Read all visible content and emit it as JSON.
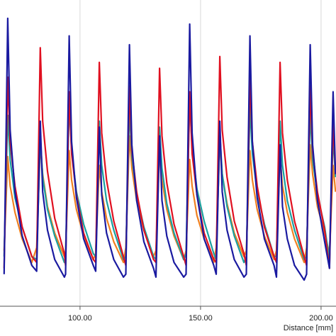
{
  "chart_data": {
    "type": "line",
    "x_label": "Distance [mm]",
    "xlim": [
      66.8,
      206.2
    ],
    "xticks": [
      {
        "value": 100,
        "label": "100.00"
      },
      {
        "value": 150,
        "label": "150.00"
      },
      {
        "value": 200,
        "label": "200.00"
      }
    ],
    "ylim": [
      0,
      100
    ],
    "grid": true,
    "x": [
      68.5,
      70,
      71,
      73,
      76,
      80,
      82,
      83.5,
      84.5,
      86.5,
      89.5,
      93.5,
      94,
      95.5,
      96.5,
      98.5,
      101.5,
      105.5,
      106.5,
      108,
      109,
      111,
      114,
      118,
      119,
      120.5,
      121.5,
      123.5,
      126.5,
      130.5,
      131.5,
      133,
      134,
      136,
      139,
      143,
      144,
      145.5,
      146.5,
      148.5,
      151.5,
      155.5,
      156.5,
      158,
      159,
      161,
      164,
      168,
      169,
      170.5,
      171.5,
      173.5,
      176.5,
      180.5,
      181.5,
      183,
      184,
      186,
      189,
      193,
      194,
      195.5,
      196.5,
      198.5,
      201.5,
      203.5,
      205,
      206
    ],
    "series": [
      {
        "color": "#f08020",
        "values": [
          16,
          48,
          38,
          29,
          20,
          12,
          17,
          52,
          42,
          31,
          22,
          14,
          16,
          50,
          40,
          30,
          21,
          13,
          15,
          45,
          36,
          27,
          19,
          12,
          17,
          55,
          44,
          33,
          23,
          14,
          16,
          50,
          40,
          30,
          21,
          13,
          16,
          47,
          38,
          28,
          20,
          12,
          17,
          53,
          42,
          32,
          22,
          14,
          16,
          50,
          40,
          30,
          21,
          13,
          16,
          48,
          38,
          29,
          20,
          12,
          17,
          52,
          42,
          31,
          22,
          15,
          45,
          36
        ]
      },
      {
        "color": "#1aa0a0",
        "values": [
          14,
          62,
          47,
          34,
          24,
          14,
          13,
          55,
          41,
          30,
          21,
          12,
          14,
          66,
          50,
          36,
          25,
          15,
          14,
          60,
          45,
          33,
          23,
          13,
          14,
          64,
          48,
          35,
          24,
          14,
          13,
          58,
          44,
          32,
          22,
          13,
          15,
          68,
          51,
          37,
          26,
          15,
          13,
          56,
          42,
          31,
          21,
          12,
          14,
          65,
          49,
          36,
          25,
          14,
          14,
          60,
          45,
          33,
          23,
          13,
          14,
          63,
          47,
          35,
          24,
          13,
          55,
          41
        ]
      },
      {
        "color": "#e01020",
        "values": [
          10,
          75,
          53,
          38,
          24,
          14,
          12,
          85,
          60,
          43,
          27,
          15,
          11,
          70,
          49,
          35,
          22,
          13,
          12,
          80,
          56,
          40,
          26,
          14,
          11,
          72,
          50,
          36,
          23,
          13,
          12,
          78,
          55,
          39,
          25,
          14,
          11,
          70,
          49,
          35,
          22,
          13,
          12,
          82,
          57,
          41,
          26,
          15,
          11,
          75,
          53,
          38,
          24,
          14,
          12,
          80,
          56,
          40,
          26,
          14,
          11,
          72,
          50,
          36,
          23,
          10,
          60,
          42
        ]
      },
      {
        "color": "#1a1aa0",
        "values": [
          8,
          95,
          57,
          36,
          21,
          11,
          9,
          60,
          36,
          23,
          13,
          7,
          8,
          89,
          53,
          34,
          20,
          11,
          9,
          58,
          35,
          22,
          13,
          7,
          8,
          86,
          52,
          33,
          19,
          10,
          7,
          55,
          33,
          21,
          12,
          7,
          8,
          93,
          56,
          35,
          20,
          11,
          8,
          60,
          36,
          23,
          13,
          7,
          8,
          89,
          53,
          34,
          20,
          11,
          7,
          52,
          31,
          20,
          11,
          6,
          8,
          86,
          52,
          33,
          19,
          10,
          70,
          42
        ]
      }
    ]
  }
}
